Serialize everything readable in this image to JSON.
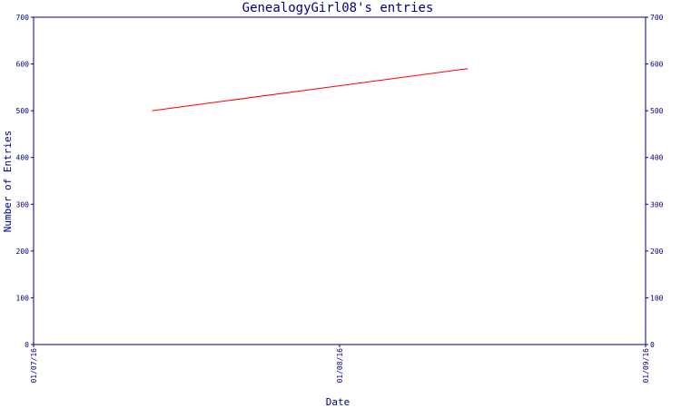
{
  "chart_data": {
    "type": "line",
    "title": "GenealogyGirl08's entries",
    "xlabel": "Date",
    "ylabel": "Number of Entries",
    "ylim": [
      0,
      700
    ],
    "y_ticks": [
      "0",
      "100",
      "200",
      "300",
      "400",
      "500",
      "600",
      "700"
    ],
    "x_ticks": [
      "01/07/16",
      "01/08/16",
      "01/09/16"
    ],
    "y_axis_right": true,
    "grid": false,
    "series": [
      {
        "x": [
          "2016-07-13",
          "2016-08-14"
        ],
        "y": [
          500,
          590
        ]
      }
    ],
    "colors": {
      "axis": "#000080",
      "line": "#ff0000",
      "text": "#000080",
      "background": "#ffffff"
    }
  }
}
